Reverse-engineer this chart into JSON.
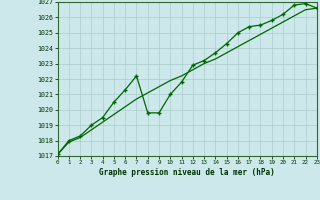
{
  "title": "Graphe pression niveau de la mer (hPa)",
  "background_color": "#cce8ea",
  "grid_color": "#aacccc",
  "line_color": "#006600",
  "x_values": [
    0,
    1,
    2,
    3,
    4,
    5,
    6,
    7,
    8,
    9,
    10,
    11,
    12,
    13,
    14,
    15,
    16,
    17,
    18,
    19,
    20,
    21,
    22,
    23
  ],
  "y_smooth": [
    1017.1,
    1017.9,
    1018.2,
    1018.7,
    1019.2,
    1019.7,
    1020.2,
    1020.7,
    1021.1,
    1021.5,
    1021.9,
    1022.2,
    1022.6,
    1023.0,
    1023.3,
    1023.7,
    1024.1,
    1024.5,
    1024.9,
    1025.3,
    1025.7,
    1026.1,
    1026.5,
    1026.6
  ],
  "y_jagged": [
    1017.1,
    1018.0,
    1018.3,
    1019.0,
    1019.5,
    1020.5,
    1021.3,
    1022.2,
    1019.8,
    1019.8,
    1021.0,
    1021.8,
    1022.9,
    1023.2,
    1023.7,
    1024.3,
    1025.0,
    1025.4,
    1025.5,
    1025.8,
    1026.2,
    1026.8,
    1026.9,
    1026.6
  ],
  "ylim_min": 1017,
  "ylim_max": 1027,
  "xlim_min": 0,
  "xlim_max": 23
}
